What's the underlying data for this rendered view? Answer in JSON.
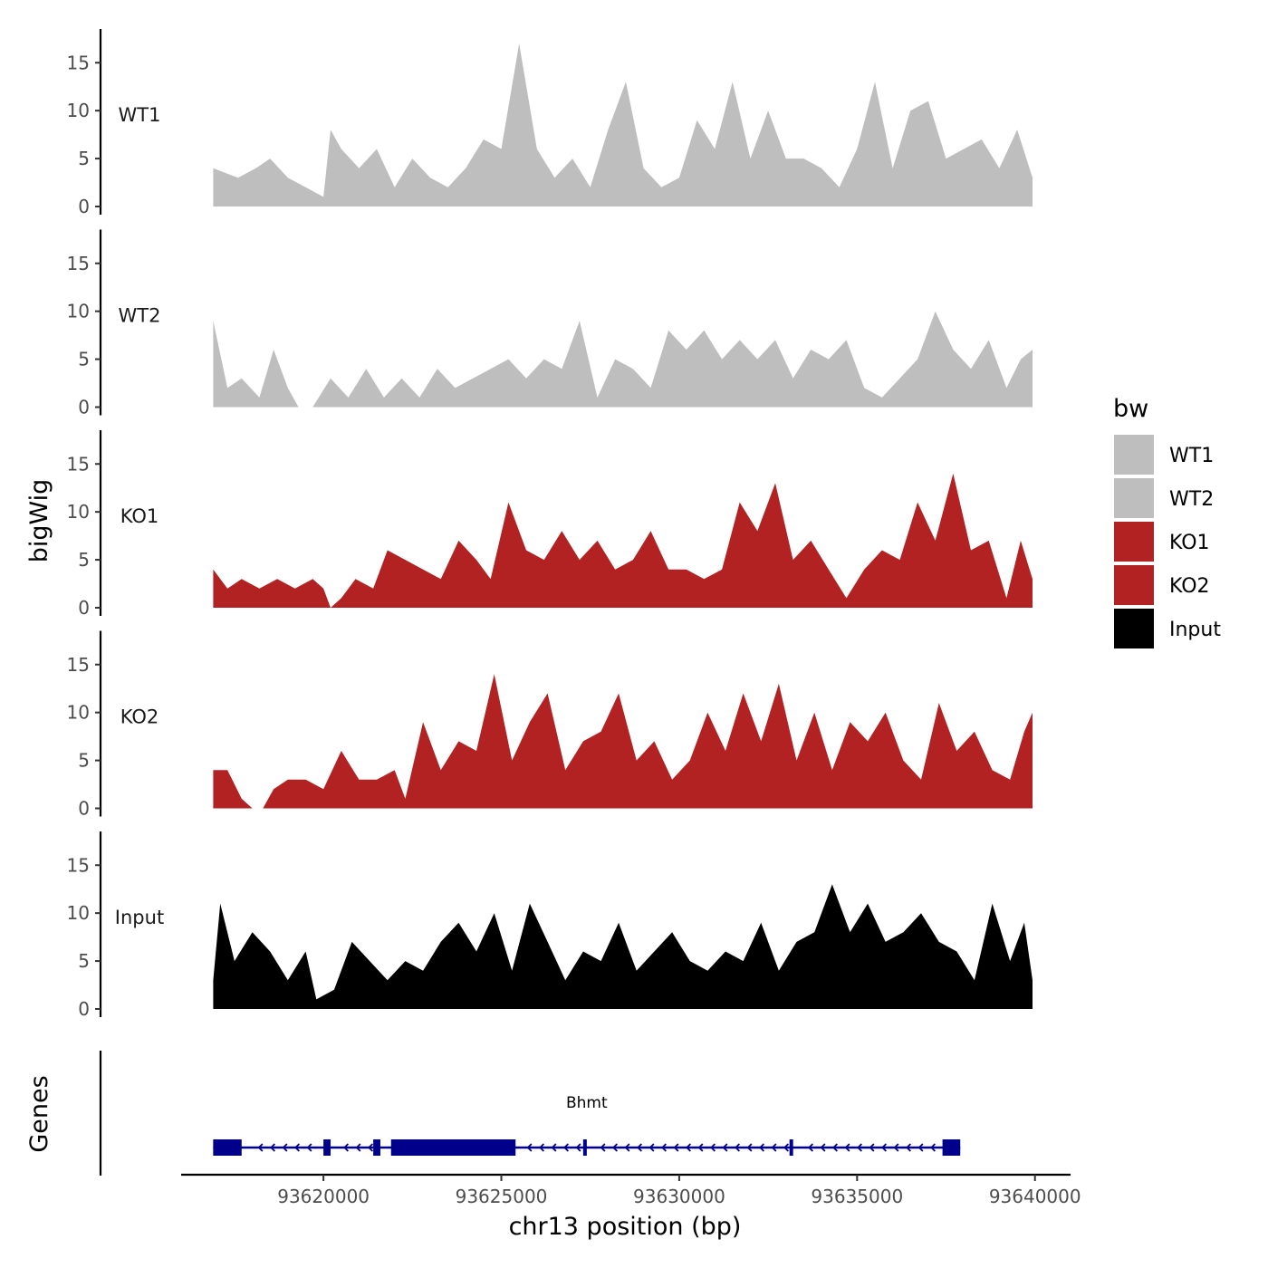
{
  "chart_data": {
    "type": "area",
    "x_unit": "bp",
    "xlim": [
      93616000,
      93641000
    ],
    "ylim": [
      0,
      18
    ],
    "x_ticks": [
      93620000,
      93625000,
      93630000,
      93635000,
      93640000
    ],
    "x_tick_labels": [
      "93620000",
      "93625000",
      "93630000",
      "93635000",
      "93640000"
    ],
    "y_ticks": [
      0,
      5,
      10,
      15
    ],
    "y_tick_labels": [
      "0",
      "5",
      "10",
      "15"
    ],
    "xlabel": "chr13 position (bp)",
    "ylabel": "bigWig",
    "legend": {
      "title": "bw",
      "position": "right"
    },
    "series": [
      {
        "name": "WT1",
        "color": "#bebebe",
        "x": [
          93616900,
          93617600,
          93618100,
          93618500,
          93619000,
          93619500,
          93620000,
          93620200,
          93620500,
          93621000,
          93621500,
          93622000,
          93622500,
          93623000,
          93623500,
          93624000,
          93624500,
          93625000,
          93625500,
          93626000,
          93626500,
          93627000,
          93627500,
          93628000,
          93628500,
          93629000,
          93629500,
          93630000,
          93630500,
          93631000,
          93631500,
          93632000,
          93632500,
          93633000,
          93633500,
          93634000,
          93634500,
          93635000,
          93635500,
          93636000,
          93636500,
          93637000,
          93637500,
          93638000,
          93638500,
          93639000,
          93639500,
          93639930
        ],
        "values": [
          4,
          3,
          4,
          5,
          3,
          2,
          1,
          8,
          6,
          4,
          6,
          2,
          5,
          3,
          2,
          4,
          7,
          6,
          17,
          6,
          3,
          5,
          2,
          8,
          13,
          4,
          2,
          3,
          9,
          6,
          13,
          5,
          10,
          5,
          5,
          4,
          2,
          6,
          13,
          4,
          10,
          11,
          5,
          6,
          7,
          4,
          8,
          3
        ]
      },
      {
        "name": "WT2",
        "color": "#bebebe",
        "x": [
          93616900,
          93617300,
          93617700,
          93618200,
          93618600,
          93619000,
          93619300,
          93619700,
          93620200,
          93620700,
          93621200,
          93621700,
          93622200,
          93622700,
          93623200,
          93623700,
          93624200,
          93624700,
          93625200,
          93625700,
          93626200,
          93626700,
          93627200,
          93627700,
          93628200,
          93628700,
          93629200,
          93629700,
          93630200,
          93630700,
          93631200,
          93631700,
          93632200,
          93632700,
          93633200,
          93633700,
          93634200,
          93634700,
          93635200,
          93635700,
          93636200,
          93636700,
          93637200,
          93637700,
          93638200,
          93638700,
          93639200,
          93639600,
          93639930
        ],
        "values": [
          9,
          2,
          3,
          1,
          6,
          2,
          0,
          0,
          3,
          1,
          4,
          1,
          3,
          1,
          4,
          2,
          3,
          4,
          5,
          3,
          5,
          4,
          9,
          1,
          5,
          4,
          2,
          8,
          6,
          8,
          5,
          7,
          5,
          7,
          3,
          6,
          5,
          7,
          2,
          1,
          3,
          5,
          10,
          6,
          4,
          7,
          2,
          5,
          6
        ]
      },
      {
        "name": "KO1",
        "color": "#b22222",
        "x": [
          93616900,
          93617300,
          93617700,
          93618200,
          93618700,
          93619200,
          93619700,
          93620000,
          93620200,
          93620500,
          93620900,
          93621400,
          93621800,
          93622300,
          93622800,
          93623300,
          93623800,
          93624300,
          93624700,
          93625200,
          93625700,
          93626200,
          93626700,
          93627200,
          93627700,
          93628200,
          93628700,
          93629200,
          93629700,
          93630200,
          93630700,
          93631200,
          93631700,
          93632200,
          93632700,
          93633200,
          93633700,
          93634200,
          93634700,
          93635200,
          93635700,
          93636200,
          93636700,
          93637200,
          93637700,
          93638200,
          93638700,
          93639200,
          93639600,
          93639930
        ],
        "values": [
          4,
          2,
          3,
          2,
          3,
          2,
          3,
          2,
          0,
          1,
          3,
          2,
          6,
          5,
          4,
          3,
          7,
          5,
          3,
          11,
          6,
          5,
          8,
          5,
          7,
          4,
          5,
          8,
          4,
          4,
          3,
          4,
          11,
          8,
          13,
          5,
          7,
          4,
          1,
          4,
          6,
          5,
          11,
          7,
          14,
          6,
          7,
          1,
          7,
          3
        ]
      },
      {
        "name": "KO2",
        "color": "#b22222",
        "x": [
          93616900,
          93617300,
          93617700,
          93618000,
          93618300,
          93618600,
          93619000,
          93619500,
          93620000,
          93620500,
          93621000,
          93621500,
          93622000,
          93622300,
          93622800,
          93623300,
          93623800,
          93624300,
          93624800,
          93625300,
          93625800,
          93626300,
          93626800,
          93627300,
          93627800,
          93628300,
          93628800,
          93629300,
          93629800,
          93630300,
          93630800,
          93631300,
          93631800,
          93632300,
          93632800,
          93633300,
          93633800,
          93634300,
          93634800,
          93635300,
          93635800,
          93636300,
          93636800,
          93637300,
          93637800,
          93638300,
          93638800,
          93639300,
          93639700,
          93639930
        ],
        "values": [
          4,
          4,
          1,
          0,
          0,
          2,
          3,
          3,
          2,
          6,
          3,
          3,
          4,
          1,
          9,
          4,
          7,
          6,
          14,
          5,
          9,
          12,
          4,
          7,
          8,
          12,
          5,
          7,
          3,
          5,
          10,
          6,
          12,
          7,
          13,
          5,
          10,
          4,
          9,
          7,
          10,
          5,
          3,
          11,
          6,
          8,
          4,
          3,
          8,
          10
        ]
      },
      {
        "name": "Input",
        "color": "#000000",
        "x": [
          93616900,
          93617100,
          93617500,
          93618000,
          93618500,
          93619000,
          93619500,
          93619800,
          93620300,
          93620800,
          93621300,
          93621800,
          93622300,
          93622800,
          93623300,
          93623800,
          93624300,
          93624800,
          93625300,
          93625800,
          93626300,
          93626800,
          93627300,
          93627800,
          93628300,
          93628800,
          93629300,
          93629800,
          93630300,
          93630800,
          93631300,
          93631800,
          93632300,
          93632800,
          93633300,
          93633800,
          93634300,
          93634800,
          93635300,
          93635800,
          93636300,
          93636800,
          93637300,
          93637800,
          93638300,
          93638800,
          93639300,
          93639700,
          93639930
        ],
        "values": [
          3,
          11,
          5,
          8,
          6,
          3,
          6,
          1,
          2,
          7,
          5,
          3,
          5,
          4,
          7,
          9,
          6,
          10,
          4,
          11,
          7,
          3,
          6,
          5,
          9,
          4,
          6,
          8,
          5,
          4,
          6,
          5,
          9,
          4,
          7,
          8,
          13,
          8,
          11,
          7,
          8,
          10,
          7,
          6,
          3,
          11,
          5,
          9,
          3
        ]
      }
    ],
    "gene_track": {
      "label": "Genes",
      "gene": "Bhmt",
      "strand": "-",
      "start": 93616900,
      "end": 93637900,
      "exons": [
        [
          93616900,
          93617700
        ],
        [
          93620000,
          93620200
        ],
        [
          93621400,
          93621600
        ],
        [
          93621900,
          93625400
        ],
        [
          93627300,
          93627400
        ],
        [
          93633100,
          93633200
        ],
        [
          93637400,
          93637900
        ]
      ]
    }
  }
}
